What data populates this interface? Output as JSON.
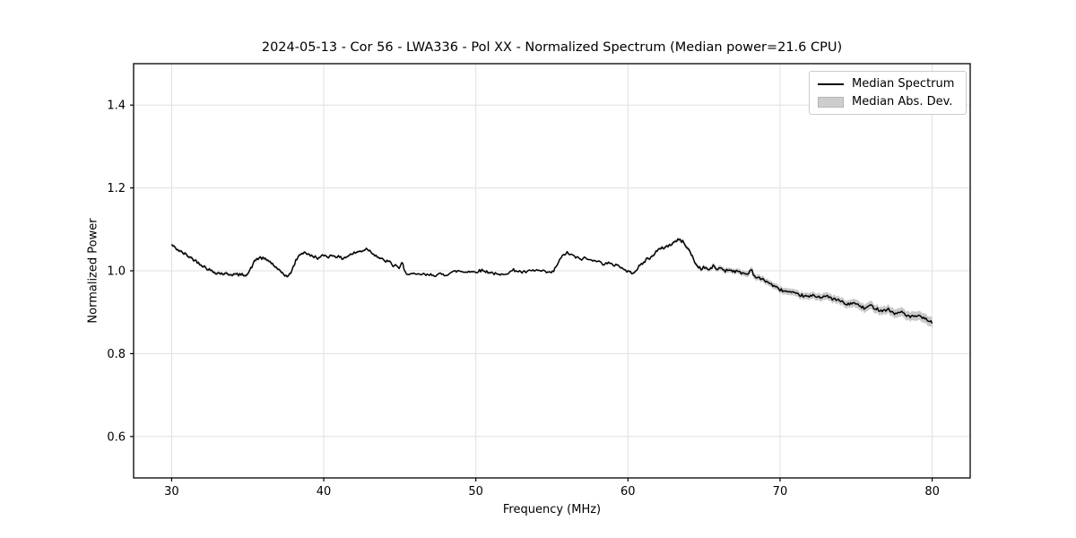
{
  "chart_data": {
    "type": "line",
    "title": "2024-05-13 - Cor 56 - LWA336 - Pol XX - Normalized Spectrum (Median power=21.6 CPU)",
    "xlabel": "Frequency (MHz)",
    "ylabel": "Normalized Power",
    "xlim": [
      27.5,
      82.5
    ],
    "ylim": [
      0.5,
      1.5
    ],
    "xticks": [
      {
        "value": 30,
        "label": "30"
      },
      {
        "value": 40,
        "label": "40"
      },
      {
        "value": 50,
        "label": "50"
      },
      {
        "value": 60,
        "label": "60"
      },
      {
        "value": 70,
        "label": "70"
      },
      {
        "value": 80,
        "label": "80"
      }
    ],
    "yticks": [
      {
        "value": 0.6,
        "label": "0.6"
      },
      {
        "value": 0.8,
        "label": "0.8"
      },
      {
        "value": 1.0,
        "label": "1.0"
      },
      {
        "value": 1.2,
        "label": "1.2"
      },
      {
        "value": 1.4,
        "label": "1.4"
      }
    ],
    "grid": true,
    "legend_position": "upper right",
    "legend": {
      "entries": [
        {
          "label": "Median Spectrum",
          "type": "line",
          "color": "#000000"
        },
        {
          "label": "Median Abs. Dev.",
          "type": "patch",
          "color": "#cdcdcd"
        }
      ]
    },
    "colors": {
      "line": "#000000",
      "band": "#c9c9c9",
      "grid": "#e0e0e0",
      "spine": "#000000",
      "text": "#000000"
    },
    "noise_amplitude": 0.0035,
    "noise_seed": 42,
    "sample_step_mhz": 0.08,
    "series": [
      {
        "name": "Median Spectrum",
        "points": [
          [
            30.0,
            1.063
          ],
          [
            30.2,
            1.056
          ],
          [
            30.4,
            1.051
          ],
          [
            30.6,
            1.046
          ],
          [
            30.9,
            1.04
          ],
          [
            31.2,
            1.033
          ],
          [
            31.5,
            1.026
          ],
          [
            31.8,
            1.019
          ],
          [
            32.1,
            1.011
          ],
          [
            32.4,
            1.004
          ],
          [
            32.7,
            0.998
          ],
          [
            33.0,
            0.995
          ],
          [
            33.4,
            0.993
          ],
          [
            33.8,
            0.992
          ],
          [
            34.2,
            0.991
          ],
          [
            34.6,
            0.99
          ],
          [
            35.0,
            0.992
          ],
          [
            35.2,
            1.005
          ],
          [
            35.5,
            1.026
          ],
          [
            35.8,
            1.032
          ],
          [
            36.1,
            1.028
          ],
          [
            36.4,
            1.024
          ],
          [
            36.7,
            1.014
          ],
          [
            37.0,
            1.001
          ],
          [
            37.3,
            0.995
          ],
          [
            37.5,
            0.988
          ],
          [
            37.7,
            0.986
          ],
          [
            38.0,
            1.009
          ],
          [
            38.2,
            1.027
          ],
          [
            38.5,
            1.042
          ],
          [
            38.8,
            1.045
          ],
          [
            39.0,
            1.038
          ],
          [
            39.4,
            1.034
          ],
          [
            39.7,
            1.03
          ],
          [
            40.0,
            1.038
          ],
          [
            40.3,
            1.034
          ],
          [
            40.6,
            1.038
          ],
          [
            40.9,
            1.034
          ],
          [
            41.2,
            1.03
          ],
          [
            41.5,
            1.034
          ],
          [
            41.8,
            1.04
          ],
          [
            42.1,
            1.044
          ],
          [
            42.5,
            1.048
          ],
          [
            42.85,
            1.054
          ],
          [
            43.1,
            1.046
          ],
          [
            43.4,
            1.038
          ],
          [
            43.7,
            1.03
          ],
          [
            44.0,
            1.024
          ],
          [
            44.3,
            1.022
          ],
          [
            44.6,
            1.011
          ],
          [
            44.8,
            1.014
          ],
          [
            45.0,
            1.003
          ],
          [
            45.15,
            1.024
          ],
          [
            45.3,
            0.997
          ],
          [
            45.6,
            0.993
          ],
          [
            45.9,
            0.991
          ],
          [
            46.2,
            0.99
          ],
          [
            46.5,
            0.992
          ],
          [
            46.8,
            0.989
          ],
          [
            47.1,
            0.991
          ],
          [
            47.4,
            0.989
          ],
          [
            47.7,
            0.992
          ],
          [
            48.0,
            0.99
          ],
          [
            48.3,
            0.995
          ],
          [
            48.6,
            0.998
          ],
          [
            48.9,
            1.0
          ],
          [
            49.2,
            0.997
          ],
          [
            49.5,
            0.999
          ],
          [
            49.8,
            0.997
          ],
          [
            50.1,
            0.999
          ],
          [
            50.4,
            1.001
          ],
          [
            50.7,
            0.998
          ],
          [
            51.0,
            0.996
          ],
          [
            51.3,
            0.992
          ],
          [
            51.6,
            0.989
          ],
          [
            51.9,
            0.994
          ],
          [
            52.2,
            0.996
          ],
          [
            52.5,
            1.002
          ],
          [
            52.8,
            0.999
          ],
          [
            53.1,
            0.996
          ],
          [
            53.4,
            0.998
          ],
          [
            53.7,
            1.0
          ],
          [
            54.0,
            1.001
          ],
          [
            54.3,
            0.999
          ],
          [
            54.6,
            0.997
          ],
          [
            54.9,
            0.995
          ],
          [
            55.1,
            0.998
          ],
          [
            55.3,
            1.012
          ],
          [
            55.5,
            1.025
          ],
          [
            55.8,
            1.04
          ],
          [
            56.0,
            1.043
          ],
          [
            56.3,
            1.038
          ],
          [
            56.6,
            1.032
          ],
          [
            56.9,
            1.028
          ],
          [
            57.2,
            1.031
          ],
          [
            57.5,
            1.025
          ],
          [
            57.8,
            1.028
          ],
          [
            58.1,
            1.021
          ],
          [
            58.4,
            1.017
          ],
          [
            58.7,
            1.019
          ],
          [
            59.0,
            1.013
          ],
          [
            59.3,
            1.016
          ],
          [
            59.6,
            1.006
          ],
          [
            59.9,
            1.0
          ],
          [
            60.2,
            0.995
          ],
          [
            60.5,
            1.0
          ],
          [
            60.8,
            1.013
          ],
          [
            61.0,
            1.018
          ],
          [
            61.2,
            1.028
          ],
          [
            61.5,
            1.031
          ],
          [
            61.8,
            1.045
          ],
          [
            62.1,
            1.052
          ],
          [
            62.4,
            1.057
          ],
          [
            62.7,
            1.061
          ],
          [
            63.0,
            1.068
          ],
          [
            63.2,
            1.073
          ],
          [
            63.4,
            1.075
          ],
          [
            63.6,
            1.07
          ],
          [
            63.9,
            1.057
          ],
          [
            64.2,
            1.037
          ],
          [
            64.5,
            1.013
          ],
          [
            64.8,
            1.005
          ],
          [
            65.1,
            1.009
          ],
          [
            65.3,
            1.001
          ],
          [
            65.6,
            1.011
          ],
          [
            65.9,
            1.003
          ],
          [
            66.1,
            1.008
          ],
          [
            66.4,
            1.0
          ],
          [
            66.7,
            1.003
          ],
          [
            67.0,
            0.999
          ],
          [
            67.3,
            0.997
          ],
          [
            67.6,
            0.994
          ],
          [
            67.9,
            0.991
          ],
          [
            68.1,
            1.007
          ],
          [
            68.3,
            0.987
          ],
          [
            68.6,
            0.982
          ],
          [
            69.0,
            0.977
          ],
          [
            69.4,
            0.968
          ],
          [
            69.8,
            0.958
          ],
          [
            70.2,
            0.952
          ],
          [
            70.6,
            0.948
          ],
          [
            71.0,
            0.944
          ],
          [
            71.4,
            0.941
          ],
          [
            71.8,
            0.937
          ],
          [
            72.2,
            0.94
          ],
          [
            72.6,
            0.937
          ],
          [
            73.0,
            0.939
          ],
          [
            73.4,
            0.933
          ],
          [
            73.8,
            0.929
          ],
          [
            74.1,
            0.925
          ],
          [
            74.4,
            0.917
          ],
          [
            74.7,
            0.923
          ],
          [
            75.0,
            0.92
          ],
          [
            75.3,
            0.914
          ],
          [
            75.6,
            0.908
          ],
          [
            75.9,
            0.917
          ],
          [
            76.2,
            0.911
          ],
          [
            76.5,
            0.906
          ],
          [
            76.8,
            0.904
          ],
          [
            77.1,
            0.908
          ],
          [
            77.4,
            0.899
          ],
          [
            77.7,
            0.896
          ],
          [
            78.0,
            0.902
          ],
          [
            78.3,
            0.893
          ],
          [
            78.6,
            0.888
          ],
          [
            78.9,
            0.891
          ],
          [
            79.2,
            0.889
          ],
          [
            79.5,
            0.884
          ],
          [
            79.8,
            0.88
          ],
          [
            80.0,
            0.873
          ]
        ]
      },
      {
        "name": "Median Abs. Dev. half-width",
        "points": [
          [
            30,
            0.004
          ],
          [
            34,
            0.004
          ],
          [
            36,
            0.004
          ],
          [
            40,
            0.003
          ],
          [
            44,
            0.003
          ],
          [
            46,
            0.002
          ],
          [
            50,
            0.002
          ],
          [
            54,
            0.002
          ],
          [
            57,
            0.002
          ],
          [
            60,
            0.003
          ],
          [
            62,
            0.004
          ],
          [
            64,
            0.005
          ],
          [
            65,
            0.005
          ],
          [
            66,
            0.006
          ],
          [
            67,
            0.006
          ],
          [
            68,
            0.007
          ],
          [
            69,
            0.007
          ],
          [
            70,
            0.008
          ],
          [
            71,
            0.008
          ],
          [
            72,
            0.008
          ],
          [
            73,
            0.009
          ],
          [
            74,
            0.009
          ],
          [
            75,
            0.01
          ],
          [
            76,
            0.01
          ],
          [
            77,
            0.01
          ],
          [
            78,
            0.011
          ],
          [
            79,
            0.011
          ],
          [
            80,
            0.012
          ]
        ]
      }
    ]
  }
}
